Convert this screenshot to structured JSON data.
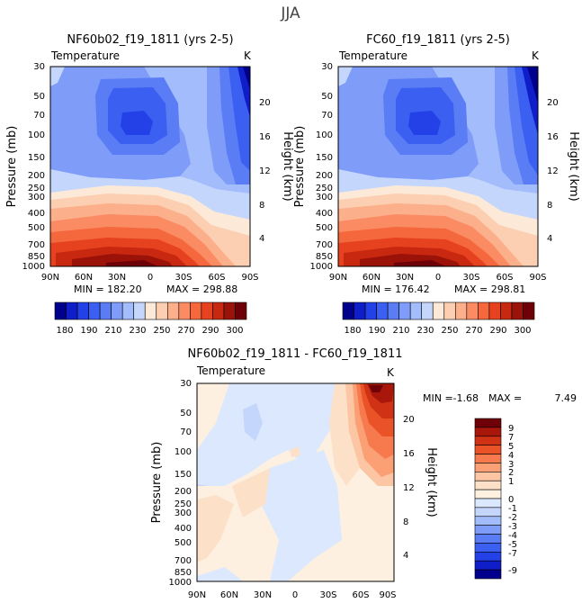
{
  "figure_title": "JJA",
  "colors": {
    "blue_scale": [
      "#00008c",
      "#0f1ec8",
      "#2341e6",
      "#3b5ff0",
      "#5a7cf5",
      "#7e9cf8",
      "#a3bcfb",
      "#c5d6fc"
    ],
    "warm_scale": [
      "#fde9d8",
      "#fccfb2",
      "#fcaf8b",
      "#fb8b62",
      "#f5683d",
      "#e7421f",
      "#c92810",
      "#9b1208",
      "#6e0008"
    ],
    "diff_colors": [
      "#00008c",
      "#0f1ec8",
      "#2341e6",
      "#3b5ff0",
      "#5a7cf5",
      "#7e9cf8",
      "#a3bcfb",
      "#c5d6fc",
      "#dce8fd",
      "#fdf0e1",
      "#fde0c8",
      "#fcc6a4",
      "#fb9f75",
      "#f77a4e",
      "#ea5228",
      "#cf3214",
      "#a8170a",
      "#6e0008"
    ]
  },
  "chart_data": [
    {
      "id": "panel-left",
      "type": "heatmap",
      "title": "NF60b02_f19_1811 (yrs 2-5)",
      "field": "Temperature",
      "units": "K",
      "ylabel": "Pressure (mb)",
      "ylabel_right": "Height (km)",
      "x_ticks": [
        "90N",
        "60N",
        "30N",
        "0",
        "30S",
        "60S",
        "90S"
      ],
      "y_ticks": [
        "30",
        "50",
        "70",
        "100",
        "150",
        "200",
        "250",
        "300",
        "400",
        "500",
        "700",
        "850",
        "1000"
      ],
      "height_ticks": [
        "4",
        "8",
        "12",
        "16",
        "20"
      ],
      "min_label": "MIN = 182.20",
      "max_label": "MAX = 298.88",
      "min": 182.2,
      "max": 298.88
    },
    {
      "id": "panel-right",
      "type": "heatmap",
      "title": "FC60_f19_1811 (yrs 2-5)",
      "field": "Temperature",
      "units": "K",
      "ylabel": "Pressure (mb)",
      "ylabel_right": "Height (km)",
      "x_ticks": [
        "90N",
        "60N",
        "30N",
        "0",
        "30S",
        "60S",
        "90S"
      ],
      "y_ticks": [
        "30",
        "50",
        "70",
        "100",
        "150",
        "200",
        "250",
        "300",
        "400",
        "500",
        "700",
        "850",
        "1000"
      ],
      "height_ticks": [
        "4",
        "8",
        "12",
        "16",
        "20"
      ],
      "min_label": "MIN = 176.42",
      "max_label": "MAX = 298.81",
      "min": 176.42,
      "max": 298.81
    },
    {
      "id": "panel-diff",
      "type": "heatmap",
      "title": "NF60b02_f19_1811 - FC60_f19_1811",
      "field": "Temperature",
      "units": "K",
      "ylabel": "Pressure (mb)",
      "ylabel_right": "Height (km)",
      "x_ticks": [
        "90N",
        "60N",
        "30N",
        "0",
        "30S",
        "60S",
        "90S"
      ],
      "y_ticks": [
        "30",
        "50",
        "70",
        "100",
        "150",
        "200",
        "250",
        "300",
        "400",
        "500",
        "700",
        "850",
        "1000"
      ],
      "height_ticks": [
        "4",
        "8",
        "12",
        "16",
        "20"
      ],
      "min_label": "MIN =",
      "min_value": "-1.68",
      "max_label": "MAX =",
      "max_value": "7.49",
      "min": -1.68,
      "max": 7.49
    }
  ],
  "colorbar_abs": {
    "labels": [
      "180",
      "190",
      "210",
      "230",
      "250",
      "270",
      "290",
      "300"
    ]
  },
  "colorbar_diff": {
    "labels": [
      "9",
      "7",
      "5",
      "4",
      "3",
      "2",
      "1",
      "0",
      "-1",
      "-2",
      "-3",
      "-4",
      "-5",
      "-7",
      "-9"
    ]
  }
}
